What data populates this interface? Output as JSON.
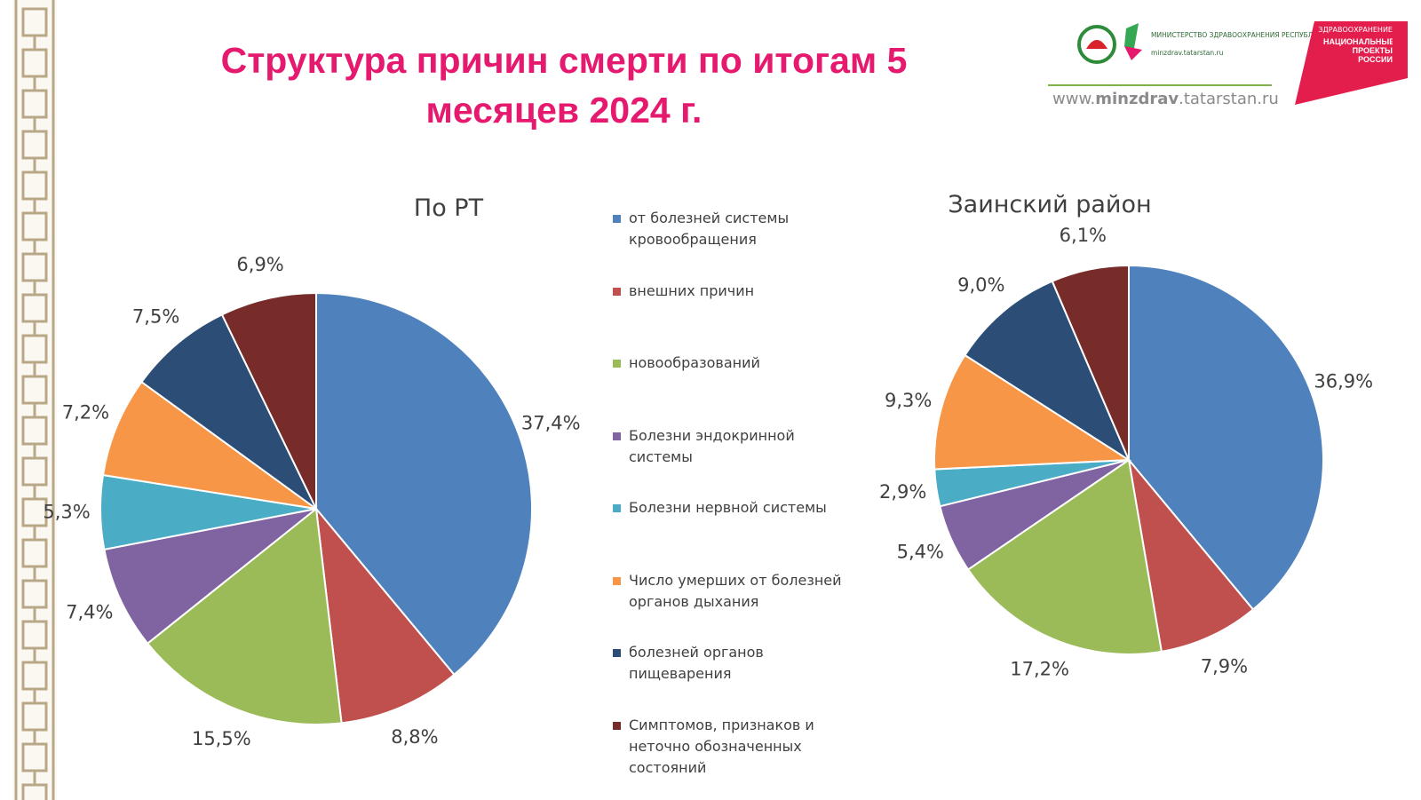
{
  "header": {
    "title": "Структура причин смерти по итогам 5 месяцев 2024 г.",
    "ministry": "МИНИСТЕРСТВО ЗДРАВООХРАНЕНИЯ РЕСПУБЛИКИ ТАТАРСТАН",
    "ministry_site": "minzdrav.tatarstan.ru",
    "site_prefix": "www.",
    "site_bold": "minzdrav",
    "site_suffix": ".tatarstan.ru",
    "np_top": "ЗДРАВООХРАНЕНИЕ",
    "np_main": "НАЦИОНАЛЬНЫЕ ПРОЕКТЫ РОССИИ"
  },
  "chart_data": [
    {
      "type": "pie",
      "title": "По РТ",
      "categories": [
        "от болезней системы кровообращения",
        "внешних причин",
        "новообразований",
        "Болезни эндокринной системы",
        "Болезни нервной системы",
        "Число умерших от болезней органов дыхания",
        "болезней органов пищеварения",
        "Симптомов, признаков и неточно обозначенных состояний"
      ],
      "values": [
        37.4,
        8.8,
        15.5,
        7.4,
        5.3,
        7.2,
        7.5,
        6.9
      ],
      "value_labels": [
        "37,4%",
        "8,8%",
        "15,5%",
        "7,4%",
        "5,3%",
        "7,2%",
        "7,5%",
        "6,9%"
      ],
      "colors": [
        "#4f81bd",
        "#c0504d",
        "#9bbb59",
        "#8064a2",
        "#4bacc6",
        "#f79646",
        "#2c4d75",
        "#772c2a"
      ]
    },
    {
      "type": "pie",
      "title": "Заинский район",
      "values": [
        36.9,
        7.9,
        17.2,
        5.4,
        2.9,
        9.3,
        9.0,
        6.1
      ],
      "value_labels": [
        "36,9%",
        "7,9%",
        "17,2%",
        "5,4%",
        "2,9%",
        "9,3%",
        "9,0%",
        "6,1%"
      ],
      "colors": [
        "#4f81bd",
        "#c0504d",
        "#9bbb59",
        "#8064a2",
        "#4bacc6",
        "#f79646",
        "#2c4d75",
        "#772c2a"
      ]
    }
  ]
}
